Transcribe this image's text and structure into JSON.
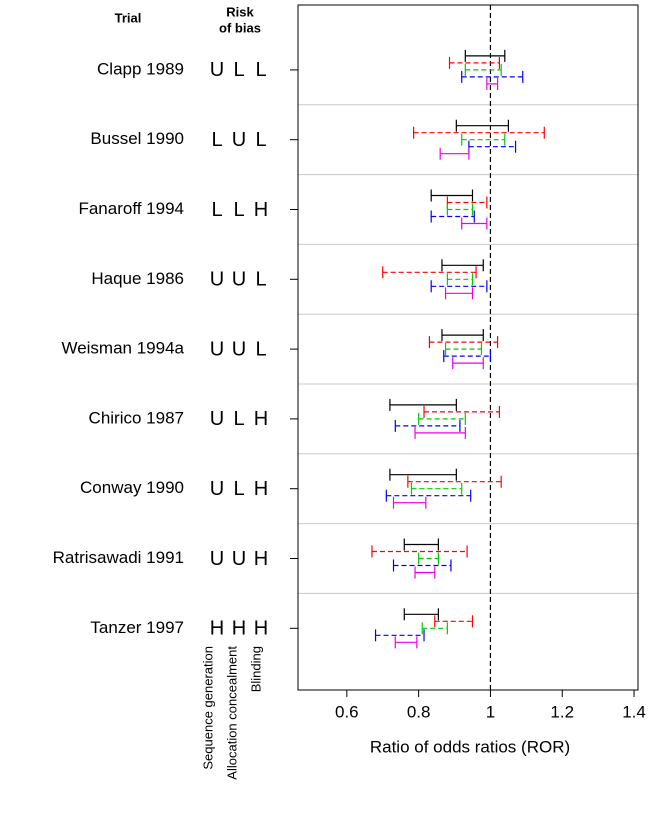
{
  "chart_data": {
    "type": "forest",
    "trial_header": "Trial",
    "bias_header": [
      "Risk",
      "of bias"
    ],
    "bias_domains": [
      "Sequence generation",
      "Allocation concealment",
      "Blinding"
    ],
    "xlabel": "Ratio of odds ratios (ROR)",
    "categories": [
      "Clapp 1989",
      "Bussel 1990",
      "Fanaroff 1994",
      "Haque 1986",
      "Weisman 1994a",
      "Chirico 1987",
      "Conway 1990",
      "Ratrisawadi 1991",
      "Tanzer 1997"
    ],
    "bias": [
      [
        "U",
        "L",
        "L"
      ],
      [
        "L",
        "U",
        "L"
      ],
      [
        "L",
        "L",
        "H"
      ],
      [
        "U",
        "U",
        "L"
      ],
      [
        "U",
        "U",
        "L"
      ],
      [
        "U",
        "L",
        "H"
      ],
      [
        "U",
        "L",
        "H"
      ],
      [
        "U",
        "U",
        "H"
      ],
      [
        "H",
        "H",
        "H"
      ]
    ],
    "bias_colors": {
      "U": "#ff0000",
      "L": "#00bb00",
      "H": "#ff0000"
    },
    "series": [
      {
        "color": "#000000",
        "dashed": false,
        "low": [
          0.93,
          0.905,
          0.835,
          0.865,
          0.865,
          0.72,
          0.72,
          0.76,
          0.76
        ],
        "high": [
          1.04,
          1.05,
          0.95,
          0.98,
          0.98,
          0.905,
          0.905,
          0.855,
          0.855
        ]
      },
      {
        "color": "#ff0000",
        "dashed": true,
        "low": [
          0.886,
          0.786,
          0.88,
          0.7,
          0.83,
          0.815,
          0.77,
          0.67,
          0.845
        ],
        "high": [
          1.025,
          1.15,
          0.99,
          0.96,
          1.02,
          1.025,
          1.03,
          0.935,
          0.95
        ]
      },
      {
        "color": "#00cc00",
        "dashed": true,
        "low": [
          0.93,
          0.92,
          0.88,
          0.88,
          0.875,
          0.8,
          0.78,
          0.8,
          0.81
        ],
        "high": [
          1.03,
          1.04,
          0.95,
          0.95,
          0.975,
          0.93,
          0.92,
          0.855,
          0.88
        ]
      },
      {
        "color": "#0000ff",
        "dashed": true,
        "low": [
          0.92,
          0.94,
          0.835,
          0.835,
          0.87,
          0.735,
          0.71,
          0.73,
          0.68
        ],
        "high": [
          1.09,
          1.07,
          0.955,
          0.99,
          1.0,
          0.915,
          0.945,
          0.89,
          0.815
        ]
      },
      {
        "color": "#ee00ee",
        "dashed": false,
        "low": [
          0.99,
          0.86,
          0.92,
          0.875,
          0.895,
          0.79,
          0.73,
          0.79,
          0.735
        ],
        "high": [
          1.02,
          0.94,
          0.99,
          0.95,
          0.98,
          0.93,
          0.82,
          0.845,
          0.795
        ]
      }
    ],
    "refline": 1,
    "xlim": [
      0.464,
      1.411
    ],
    "xticks": [
      0.6,
      0.8,
      1.0,
      1.2,
      1.4
    ]
  }
}
